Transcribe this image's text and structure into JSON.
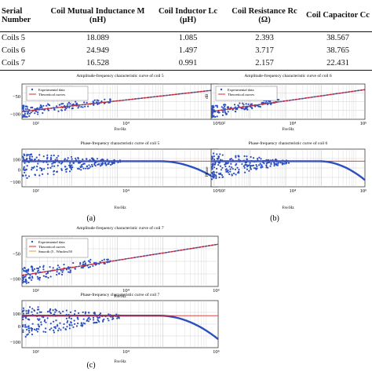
{
  "table": {
    "headers": [
      "Serial Number",
      "Coil Mutual Inductance M (nH)",
      "Coil Inductor Lc (μH)",
      "Coil Resistance Rc (Ω)",
      "Coil Capacitor Cc"
    ],
    "rows": [
      [
        "Coils 5",
        "18.089",
        "1.085",
        "2.393",
        "38.567"
      ],
      [
        "Coils 6",
        "24.949",
        "1.497",
        "3.717",
        "38.765"
      ],
      [
        "Coils 7",
        "16.528",
        "0.991",
        "2.157",
        "22.431"
      ]
    ]
  },
  "panels": [
    {
      "label": "(a)",
      "amp_title": "Amplitude-frequency characteristic curve of coil 5",
      "phase_title": "Phase-frequency characteristic curve of coil 5",
      "legend": [
        "Expeirmental data",
        "Theoretical curves"
      ],
      "amp_yticks": [
        "−50",
        "−100"
      ],
      "phase_yticks": [
        "100",
        "0",
        "−100"
      ],
      "xticks": [
        "10²",
        "10⁴",
        "10⁶"
      ],
      "xlabel": "Fre/Hz",
      "ylabel_amp": "",
      "ylabel_phase": ""
    },
    {
      "label": "(b)",
      "amp_title": "Amplitude-frequency characteristic curve of coil 6",
      "phase_title": "Phase-frequency characteristic curve of coil 6",
      "legend": [
        "Expeirmental data",
        "Theoretical curves"
      ],
      "amp_yticks": [
        "",
        ""
      ],
      "phase_yticks": [
        "",
        "",
        ""
      ],
      "xticks": [
        "10²",
        "10⁴",
        "10⁶"
      ],
      "xlabel": "Fre/Hz",
      "ylabel_amp": "dB",
      "ylabel_phase": "Phase"
    },
    {
      "label": "(c)",
      "amp_title": "Amplitude-frequency characteristic curve of coil 7",
      "phase_title": "Phase-frequency characteristic curve of coil 7",
      "legend": [
        "Expeirmental data",
        "Theoretical curves",
        "Smooth (5 , Window50"
      ],
      "amp_yticks": [
        "−50",
        "−100"
      ],
      "phase_yticks": [
        "100",
        "0",
        "−100"
      ],
      "xticks": [
        "10²",
        "10⁴",
        "10⁶"
      ],
      "xlabel": "Fre/Hz",
      "ylabel_amp": "",
      "ylabel_phase": ""
    }
  ],
  "colors": {
    "data": "#2b4fbf",
    "theory": "#d42a2a",
    "smooth": "#d9a426",
    "grid": "#c8c8c8"
  }
}
